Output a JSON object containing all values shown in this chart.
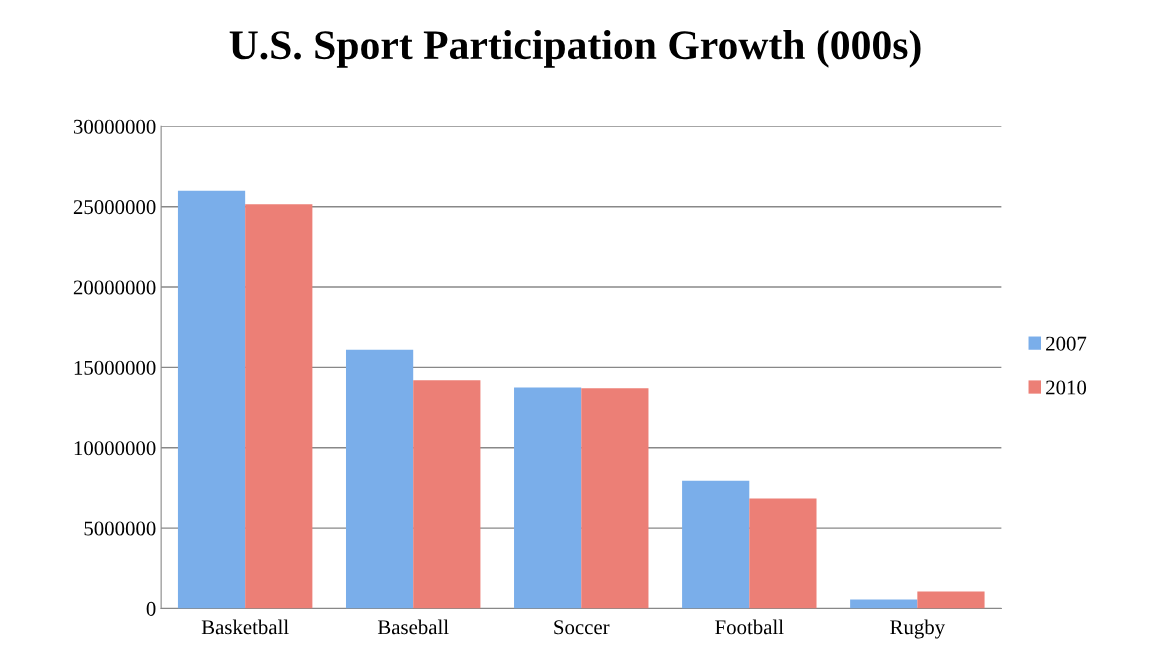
{
  "chart_data": {
    "type": "bar",
    "title": "U.S. Sport Participation Growth (000s)",
    "categories": [
      "Basketball",
      "Baseball",
      "Soccer",
      "Football",
      "Rugby"
    ],
    "series": [
      {
        "name": "2007",
        "color": "#7aaeea",
        "values": [
          26000000,
          16100000,
          13750000,
          7950000,
          560000
        ]
      },
      {
        "name": "2010",
        "color": "#ec7f76",
        "values": [
          25150000,
          14200000,
          13700000,
          6850000,
          1060000
        ]
      }
    ],
    "ylim": [
      0,
      30000000
    ],
    "yticks": [
      0,
      5000000,
      10000000,
      15000000,
      20000000,
      25000000,
      30000000
    ],
    "grid": "y",
    "legend": "right"
  }
}
